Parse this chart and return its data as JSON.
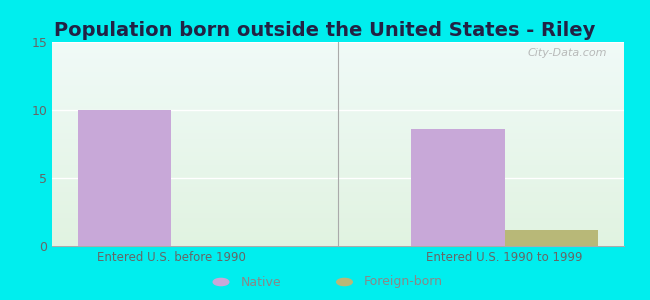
{
  "title": "Population born outside the United States - Riley",
  "title_fontsize": 14,
  "title_fontweight": "bold",
  "title_color": "#222244",
  "background_color": "#00EEEE",
  "categories": [
    "Entered U.S. before 1990",
    "Entered U.S. 1990 to 1999"
  ],
  "native_values": [
    10.0,
    8.6
  ],
  "foreign_values": [
    0.0,
    1.2
  ],
  "native_color": "#c8a8d8",
  "foreign_color": "#b8b878",
  "ylim": [
    0,
    15
  ],
  "yticks": [
    0,
    5,
    10,
    15
  ],
  "bar_width": 0.28,
  "xlabel_fontsize": 8.5,
  "tick_fontsize": 9,
  "legend_native_label": "Native",
  "legend_foreign_label": "Foreign-born",
  "watermark": "City-Data.com",
  "grid_color": "#dddddd"
}
